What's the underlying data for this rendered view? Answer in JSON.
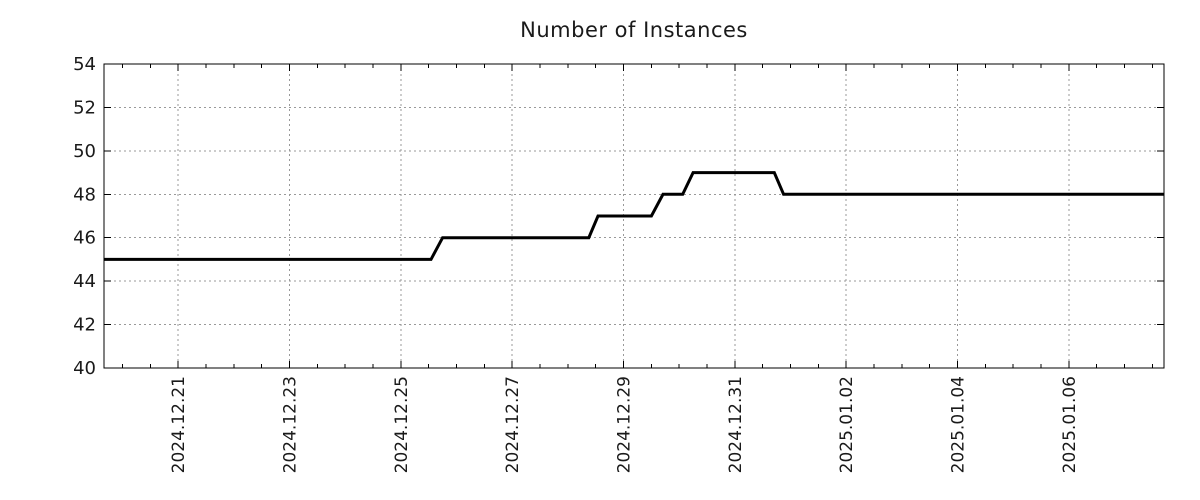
{
  "chart_data": {
    "type": "line",
    "title": "Number of Instances",
    "line_color": "#000000",
    "line_width": 3,
    "grid": {
      "color": "#999999",
      "style": "dotted",
      "vertical_on_major_ticks": true,
      "horizontal_on_major_ticks": true
    },
    "axis_color": "#000000",
    "background_color": "#ffffff",
    "legend": "none",
    "x_axis": {
      "start": "2024-12-19T16:00:00",
      "end": "2025-01-07T17:00:00",
      "minor_tick_hours": 12,
      "ticks": [
        {
          "date": "2024-12-21T00:00:00",
          "label": "2024.12.21"
        },
        {
          "date": "2024-12-23T00:00:00",
          "label": "2024.12.23"
        },
        {
          "date": "2024-12-25T00:00:00",
          "label": "2024.12.25"
        },
        {
          "date": "2024-12-27T00:00:00",
          "label": "2024.12.27"
        },
        {
          "date": "2024-12-29T00:00:00",
          "label": "2024.12.29"
        },
        {
          "date": "2024-12-31T00:00:00",
          "label": "2024.12.31"
        },
        {
          "date": "2025-01-02T00:00:00",
          "label": "2025.01.02"
        },
        {
          "date": "2025-01-04T00:00:00",
          "label": "2025.01.04"
        },
        {
          "date": "2025-01-06T00:00:00",
          "label": "2025.01.06"
        }
      ]
    },
    "y_axis": {
      "min": 40,
      "max": 54,
      "tick_step": 2,
      "ticks": [
        {
          "value": 40,
          "label": "40"
        },
        {
          "value": 42,
          "label": "42"
        },
        {
          "value": 44,
          "label": "44"
        },
        {
          "value": 46,
          "label": "46"
        },
        {
          "value": 48,
          "label": "48"
        },
        {
          "value": 50,
          "label": "50"
        },
        {
          "value": 52,
          "label": "52"
        },
        {
          "value": 54,
          "label": "54"
        }
      ]
    },
    "series": [
      {
        "name": "instances",
        "points": [
          {
            "t": "2024-12-19T16:00:00",
            "v": 45
          },
          {
            "t": "2024-12-25T13:00:00",
            "v": 45
          },
          {
            "t": "2024-12-25T18:00:00",
            "v": 46
          },
          {
            "t": "2024-12-28T09:00:00",
            "v": 46
          },
          {
            "t": "2024-12-28T13:00:00",
            "v": 47
          },
          {
            "t": "2024-12-29T12:00:00",
            "v": 47
          },
          {
            "t": "2024-12-29T17:00:00",
            "v": 48
          },
          {
            "t": "2024-12-30T01:30:00",
            "v": 48
          },
          {
            "t": "2024-12-30T06:00:00",
            "v": 49
          },
          {
            "t": "2024-12-31T17:00:00",
            "v": 49
          },
          {
            "t": "2024-12-31T21:00:00",
            "v": 48
          },
          {
            "t": "2025-01-07T17:00:00",
            "v": 48
          }
        ]
      }
    ]
  }
}
